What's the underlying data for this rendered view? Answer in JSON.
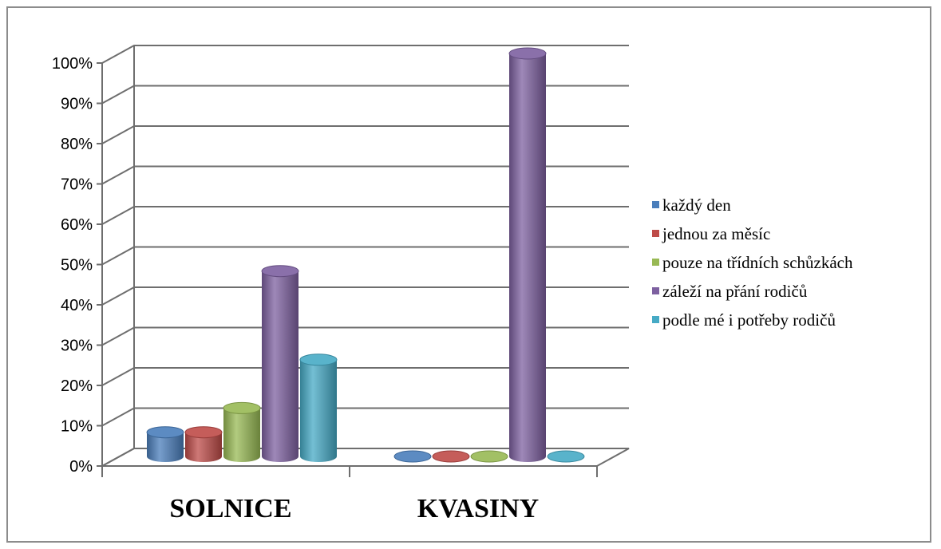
{
  "chart_data": {
    "type": "bar",
    "style": "3d-cylinder",
    "categories": [
      "SOLNICE",
      "KVASINY"
    ],
    "series": [
      {
        "name": "každý den",
        "values": [
          6,
          0
        ],
        "color": "#4a7ebb"
      },
      {
        "name": "jednou za měsíc",
        "values": [
          6,
          0
        ],
        "color": "#be4b48"
      },
      {
        "name": "pouze na třídních schůzkách",
        "values": [
          12,
          0
        ],
        "color": "#98b954"
      },
      {
        "name": "záleží na přání rodičů",
        "values": [
          46,
          100
        ],
        "color": "#7d60a0"
      },
      {
        "name": "podle mé i potřeby rodičů",
        "values": [
          24,
          0
        ],
        "color": "#46aac5"
      }
    ],
    "y_ticks": [
      "0%",
      "10%",
      "20%",
      "30%",
      "40%",
      "50%",
      "60%",
      "70%",
      "80%",
      "90%",
      "100%"
    ],
    "ylim": [
      0,
      100
    ],
    "grid": true,
    "legend_position": "right"
  }
}
